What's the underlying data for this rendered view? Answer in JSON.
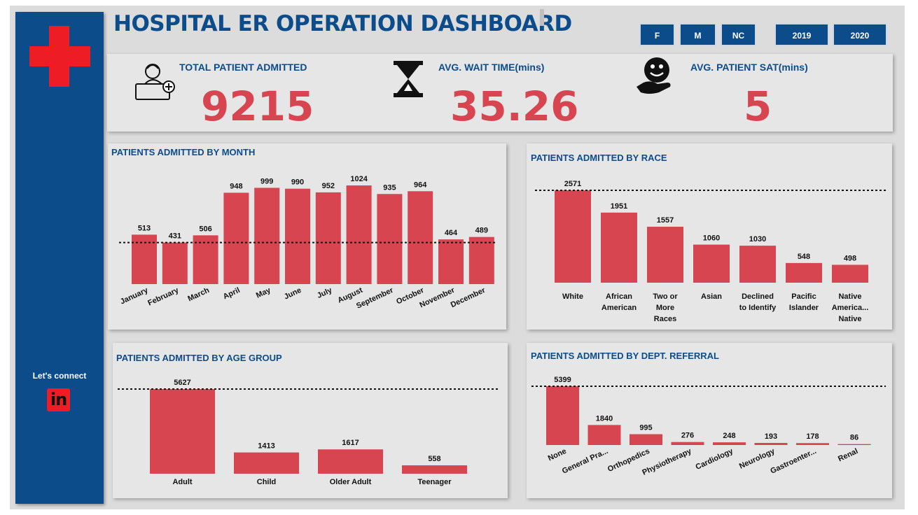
{
  "header": {
    "title": "HOSPITAL ER OPERATION DASHBOARD",
    "gender_slicers": [
      "F",
      "M",
      "NC"
    ],
    "year_slicers": [
      "2019",
      "2020"
    ]
  },
  "sidebar": {
    "connect_label": "Let's connect",
    "linkedin_text": "in"
  },
  "kpis": [
    {
      "label": "TOTAL PATIENT ADMITTED",
      "value": "9215",
      "icon": "patient-bed-icon"
    },
    {
      "label": "AVG. WAIT TIME(mins)",
      "value": "35.26",
      "icon": "hourglass-icon"
    },
    {
      "label": "AVG. PATIENT SAT(mins)",
      "value": "5",
      "icon": "smiley-hand-icon"
    }
  ],
  "colors": {
    "accent": "#d64550",
    "brand": "#0d4c8b",
    "panel": "#e6e6e6",
    "background": "#dcdcdc"
  },
  "chart_data": [
    {
      "id": "month",
      "type": "bar",
      "title": "PATIENTS ADMITTED BY MONTH",
      "categories": [
        "January",
        "February",
        "March",
        "April",
        "May",
        "June",
        "July",
        "August",
        "September",
        "October",
        "November",
        "December"
      ],
      "values": [
        513,
        431,
        506,
        948,
        999,
        990,
        952,
        1024,
        935,
        964,
        464,
        489
      ],
      "average_line": 431,
      "ylim": [
        0,
        1024
      ]
    },
    {
      "id": "race",
      "type": "bar",
      "title": "PATIENTS ADMITTED BY RACE",
      "categories": [
        [
          "White"
        ],
        [
          "African",
          "American"
        ],
        [
          "Two or",
          "More",
          "Races"
        ],
        [
          "Asian"
        ],
        [
          "Declined",
          "to Identify"
        ],
        [
          "Pacific",
          "Islander"
        ],
        [
          "Native",
          "America...",
          "Native"
        ]
      ],
      "values": [
        2571,
        1951,
        1557,
        1060,
        1030,
        548,
        498
      ],
      "average_line": 2571,
      "ylim": [
        0,
        2571
      ]
    },
    {
      "id": "age",
      "type": "bar",
      "title": "PATIENTS ADMITTED BY AGE GROUP",
      "categories": [
        [
          "Adult"
        ],
        [
          "Child"
        ],
        [
          "Older Adult"
        ],
        [
          "Teenager"
        ]
      ],
      "values": [
        5627,
        1413,
        1617,
        558
      ],
      "average_line": 5627,
      "ylim": [
        0,
        5627
      ]
    },
    {
      "id": "dept",
      "type": "bar",
      "title": "PATIENTS ADMITTED BY DEPT. REFERRAL",
      "categories": [
        "None",
        "General Pra...",
        "Orthopedics",
        "Physiotherapy",
        "Cardiology",
        "Neurology",
        "Gastroenter...",
        "Renal"
      ],
      "values": [
        5399,
        1840,
        995,
        276,
        248,
        193,
        178,
        86
      ],
      "average_line": 5399,
      "ylim": [
        0,
        5399
      ]
    }
  ]
}
